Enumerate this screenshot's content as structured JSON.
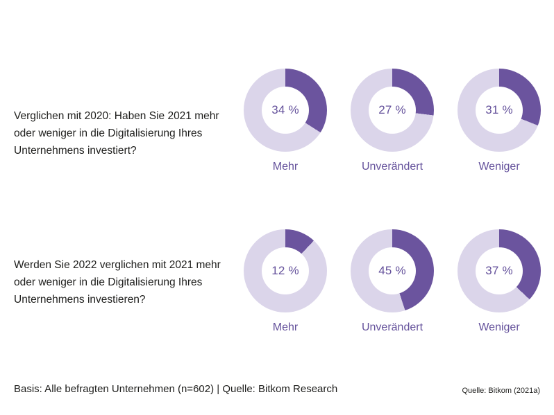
{
  "colors": {
    "segment_dark": "#6B549E",
    "segment_light": "#DBD5EA",
    "text_purple": "#64519B",
    "ink": "#1D1D1B",
    "background": "#FFFFFF"
  },
  "rows": [
    {
      "question": "Verglichen mit 2020: Haben Sie 2021 mehr oder weniger in die Digitalisierung Ihres Unternehmens investiert?",
      "donuts": [
        {
          "label": "Mehr",
          "value": 34,
          "display": "34 %"
        },
        {
          "label": "Unverändert",
          "value": 27,
          "display": "27 %"
        },
        {
          "label": "Weniger",
          "value": 31,
          "display": "31 %"
        }
      ]
    },
    {
      "question": "Werden Sie 2022 verglichen mit 2021 mehr oder weniger in die Digitalisierung Ihres Unternehmens investieren?",
      "donuts": [
        {
          "label": "Mehr",
          "value": 12,
          "display": "12 %"
        },
        {
          "label": "Unverändert",
          "value": 45,
          "display": "45 %"
        },
        {
          "label": "Weniger",
          "value": 37,
          "display": "37 %"
        }
      ]
    }
  ],
  "footer": {
    "basis": "Basis: Alle befragten Unternehmen (n=602) | Quelle: Bitkom Research",
    "source": "Quelle: Bitkom (2021a)"
  },
  "chart_data": [
    {
      "type": "pie",
      "subtype": "donut-group",
      "title": "Verglichen mit 2020: Haben Sie 2021 mehr oder weniger in die Digitalisierung Ihres Unternehmens investiert?",
      "categories": [
        "Mehr",
        "Unverändert",
        "Weniger"
      ],
      "values": [
        34,
        27,
        31
      ],
      "unit": "%",
      "layout": "three separate donuts in a row, value centered in hole, category label below",
      "segment_start": "12 o'clock, clockwise",
      "colors": {
        "filled": "#6B549E",
        "remainder": "#DBD5EA"
      }
    },
    {
      "type": "pie",
      "subtype": "donut-group",
      "title": "Werden Sie 2022 verglichen mit 2021 mehr oder weniger in die Digitalisierung Ihres Unternehmens investieren?",
      "categories": [
        "Mehr",
        "Unverändert",
        "Weniger"
      ],
      "values": [
        12,
        45,
        37
      ],
      "unit": "%",
      "layout": "three separate donuts in a row, value centered in hole, category label below",
      "segment_start": "12 o'clock, clockwise",
      "colors": {
        "filled": "#6B549E",
        "remainder": "#DBD5EA"
      }
    }
  ]
}
